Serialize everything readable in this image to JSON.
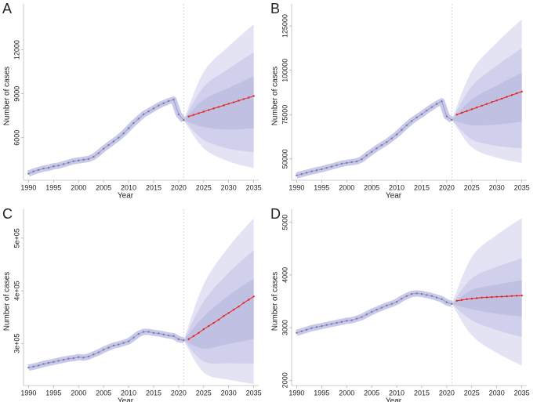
{
  "chart_data": [
    {
      "type": "line",
      "label": "A",
      "xlabel": "Year",
      "ylabel": "Number of cases",
      "xlim": [
        1989,
        2036
      ],
      "xticks": [
        1990,
        1995,
        2000,
        2005,
        2010,
        2015,
        2020,
        2025,
        2030,
        2035
      ],
      "ylim": [
        3100,
        14600
      ],
      "yticks": [
        6000,
        9000,
        12000
      ],
      "vline": 2021,
      "series": [
        {
          "color": "#7a7a9e",
          "x": [
            1990,
            1991,
            1992,
            1993,
            1994,
            1995,
            1996,
            1997,
            1998,
            1999,
            2000,
            2001,
            2002,
            2003,
            2004,
            2005,
            2006,
            2007,
            2008,
            2009,
            2010,
            2011,
            2012,
            2013,
            2014,
            2015,
            2016,
            2017,
            2018,
            2019,
            2020,
            2021
          ],
          "values": [
            3550,
            3700,
            3800,
            3900,
            3950,
            4050,
            4100,
            4200,
            4300,
            4400,
            4450,
            4500,
            4550,
            4700,
            4950,
            5250,
            5500,
            5750,
            6000,
            6300,
            6650,
            7000,
            7300,
            7600,
            7800,
            8000,
            8200,
            8350,
            8500,
            8600,
            7600,
            7200
          ]
        },
        {
          "color": "#e8201c",
          "x": [
            2022,
            2023,
            2024,
            2025,
            2026,
            2027,
            2028,
            2029,
            2030,
            2031,
            2032,
            2033,
            2034,
            2035
          ],
          "values": [
            7450,
            7560,
            7670,
            7780,
            7890,
            8000,
            8100,
            8210,
            8320,
            8420,
            8530,
            8640,
            8740,
            8850
          ]
        }
      ],
      "bands": [
        {
          "color": "#dedef2",
          "x": [
            2021,
            2025,
            2030,
            2035
          ],
          "lower": [
            7200,
            5280,
            4384,
            3930
          ],
          "upper": [
            7200,
            10490,
            12240,
            13750
          ]
        },
        {
          "color": "#cdcdea",
          "x": [
            2021,
            2025,
            2030,
            2035
          ],
          "lower": [
            7200,
            5860,
            5256,
            5020
          ],
          "upper": [
            7200,
            9470,
            10712,
            11840
          ]
        },
        {
          "color": "#bdbde2",
          "x": [
            2021,
            2025,
            2030,
            2035
          ],
          "lower": [
            7200,
            6725,
            6560,
            6650
          ],
          "upper": [
            7200,
            8605,
            9400,
            10200
          ]
        }
      ]
    },
    {
      "type": "line",
      "label": "B",
      "xlabel": "Year",
      "ylabel": "Number of cases",
      "xlim": [
        1989,
        2036
      ],
      "xticks": [
        1990,
        1995,
        2000,
        2005,
        2010,
        2015,
        2020,
        2025,
        2030,
        2035
      ],
      "ylim": [
        38000,
        133000
      ],
      "yticks": [
        50000,
        75000,
        100000,
        125000
      ],
      "vline": 2021,
      "series": [
        {
          "color": "#7a7a9e",
          "x": [
            1990,
            1991,
            1992,
            1993,
            1994,
            1995,
            1996,
            1997,
            1998,
            1999,
            2000,
            2001,
            2002,
            2003,
            2004,
            2005,
            2006,
            2007,
            2008,
            2009,
            2010,
            2011,
            2012,
            2013,
            2014,
            2015,
            2016,
            2017,
            2018,
            2019,
            2020,
            2021
          ],
          "values": [
            40700,
            41500,
            42200,
            43000,
            43600,
            44200,
            45000,
            45700,
            46500,
            47300,
            47800,
            48200,
            48600,
            49800,
            52000,
            54000,
            56000,
            57800,
            59500,
            61600,
            63800,
            66400,
            69000,
            71400,
            73400,
            75200,
            77300,
            79200,
            81000,
            82500,
            74000,
            72000
          ]
        },
        {
          "color": "#e8201c",
          "x": [
            2022,
            2023,
            2024,
            2025,
            2026,
            2027,
            2028,
            2029,
            2030,
            2031,
            2032,
            2033,
            2034,
            2035
          ],
          "values": [
            75000,
            76000,
            77000,
            78000,
            79000,
            80000,
            81000,
            82000,
            83000,
            84000,
            85000,
            86000,
            87000,
            88000
          ]
        }
      ],
      "bands": [
        {
          "color": "#dedef2",
          "x": [
            2021,
            2025,
            2030,
            2035
          ],
          "lower": [
            72000,
            56640,
            50760,
            47700
          ],
          "upper": [
            72000,
            99570,
            115560,
            128700
          ]
        },
        {
          "color": "#cdcdea",
          "x": [
            2021,
            2025,
            2030,
            2035
          ],
          "lower": [
            72000,
            61040,
            57400,
            56000
          ],
          "upper": [
            72000,
            90985,
            102600,
            112500
          ]
        },
        {
          "color": "#bdbde2",
          "x": [
            2021,
            2025,
            2030,
            2035
          ],
          "lower": [
            72000,
            68990,
            69400,
            71000
          ],
          "upper": [
            72000,
            83618,
            91480,
            98600
          ]
        }
      ]
    },
    {
      "type": "line",
      "label": "C",
      "xlabel": "Year",
      "ylabel": "Number of cases",
      "xlim": [
        1989,
        2036
      ],
      "xticks": [
        1990,
        1995,
        2000,
        2005,
        2010,
        2015,
        2020,
        2025,
        2030,
        2035
      ],
      "ylim": [
        220000,
        540000
      ],
      "yticks": [
        {
          "value": 300000,
          "label": "3e+05"
        },
        {
          "value": 400000,
          "label": "4e+05"
        },
        {
          "value": 500000,
          "label": "5e+05"
        }
      ],
      "vline": 2021,
      "series": [
        {
          "color": "#7a7a9e",
          "x": [
            1990,
            1991,
            1992,
            1993,
            1994,
            1995,
            1996,
            1997,
            1998,
            1999,
            2000,
            2001,
            2002,
            2003,
            2004,
            2005,
            2006,
            2007,
            2008,
            2009,
            2010,
            2011,
            2012,
            2013,
            2014,
            2015,
            2016,
            2017,
            2018,
            2019,
            2020,
            2021
          ],
          "values": [
            254000,
            256000,
            258000,
            261000,
            263000,
            265000,
            267000,
            269000,
            271000,
            272000,
            274000,
            273000,
            275000,
            279000,
            283000,
            288000,
            292000,
            296000,
            298000,
            301000,
            304000,
            311000,
            318000,
            322000,
            322000,
            320000,
            319000,
            317000,
            315000,
            314000,
            308000,
            306000
          ]
        },
        {
          "color": "#e8201c",
          "x": [
            2022,
            2023,
            2024,
            2025,
            2026,
            2027,
            2028,
            2029,
            2030,
            2031,
            2032,
            2033,
            2034,
            2035
          ],
          "values": [
            308000,
            314000,
            320000,
            327000,
            333000,
            339000,
            345000,
            352000,
            358000,
            364000,
            370000,
            377000,
            383000,
            389000
          ]
        }
      ],
      "bands": [
        {
          "color": "#dedef2",
          "x": [
            2021,
            2025,
            2030,
            2035
          ],
          "lower": [
            306000,
            245000,
            231200,
            223000
          ],
          "upper": [
            306000,
            412000,
            483200,
            538000
          ]
        },
        {
          "color": "#cdcdea",
          "x": [
            2021,
            2025,
            2030,
            2035
          ],
          "lower": [
            306000,
            265700,
            262400,
            262000
          ],
          "upper": [
            306000,
            379600,
            434400,
            477000
          ]
        },
        {
          "color": "#bdbde2",
          "x": [
            2021,
            2025,
            2030,
            2035
          ],
          "lower": [
            306000,
            290100,
            299200,
            308000
          ],
          "upper": [
            306000,
            351000,
            391200,
            423000
          ]
        }
      ]
    },
    {
      "type": "line",
      "label": "D",
      "xlabel": "Year",
      "ylabel": "Number of cases",
      "xlim": [
        1989,
        2036
      ],
      "xticks": [
        1990,
        1995,
        2000,
        2005,
        2010,
        2015,
        2020,
        2025,
        2030,
        2035
      ],
      "ylim": [
        1900,
        5100
      ],
      "yticks": [
        2000,
        3000,
        4000,
        5000
      ],
      "vline": 2021,
      "series": [
        {
          "color": "#7a7a9e",
          "x": [
            1990,
            1991,
            1992,
            1993,
            1994,
            1995,
            1996,
            1997,
            1998,
            1999,
            2000,
            2001,
            2002,
            2003,
            2004,
            2005,
            2006,
            2007,
            2008,
            2009,
            2010,
            2011,
            2012,
            2013,
            2014,
            2015,
            2016,
            2017,
            2018,
            2019,
            2020,
            2021
          ],
          "values": [
            2900,
            2930,
            2960,
            2990,
            3010,
            3030,
            3050,
            3070,
            3090,
            3110,
            3130,
            3140,
            3170,
            3200,
            3250,
            3300,
            3340,
            3380,
            3420,
            3450,
            3490,
            3550,
            3600,
            3640,
            3650,
            3640,
            3620,
            3600,
            3570,
            3540,
            3480,
            3450
          ]
        },
        {
          "color": "#e8201c",
          "x": [
            2022,
            2023,
            2024,
            2025,
            2026,
            2027,
            2028,
            2029,
            2030,
            2031,
            2032,
            2033,
            2034,
            2035
          ],
          "values": [
            3510,
            3525,
            3540,
            3550,
            3560,
            3570,
            3575,
            3580,
            3585,
            3590,
            3595,
            3600,
            3605,
            3610
          ]
        }
      ],
      "bands": [
        {
          "color": "#dedef2",
          "x": [
            2021,
            2025,
            2030,
            2035
          ],
          "lower": [
            3450,
            2855,
            2521,
            2280
          ],
          "upper": [
            3450,
            4340,
            4761,
            5080
          ]
        },
        {
          "color": "#cdcdea",
          "x": [
            2021,
            2025,
            2030,
            2035
          ],
          "lower": [
            3450,
            3141,
            2953,
            2820
          ],
          "upper": [
            3450,
            3936,
            4153,
            4320
          ]
        },
        {
          "color": "#bdbde2",
          "x": [
            2021,
            2025,
            2030,
            2035
          ],
          "lower": [
            3450,
            3348,
            3265,
            3210
          ],
          "upper": [
            3450,
            3714,
            3817,
            3900
          ]
        }
      ]
    }
  ]
}
